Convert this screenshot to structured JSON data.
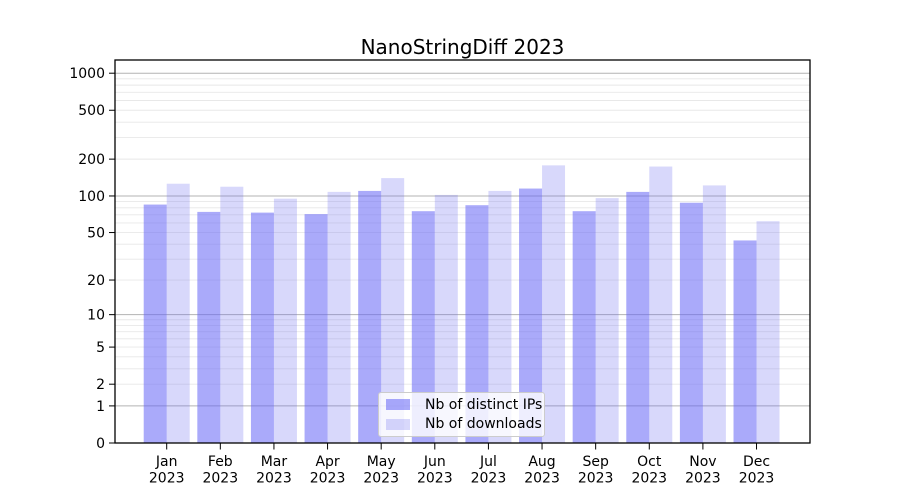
{
  "chart_data": {
    "type": "bar",
    "title": "NanoStringDiff 2023",
    "categories": [
      "Jan 2023",
      "Feb 2023",
      "Mar 2023",
      "Apr 2023",
      "May 2023",
      "Jun 2023",
      "Jul 2023",
      "Aug 2023",
      "Sep 2023",
      "Oct 2023",
      "Nov 2023",
      "Dec 2023"
    ],
    "series": [
      {
        "name": "Nb of distinct IPs",
        "color": "rgba(100,100,245,0.55)",
        "values": [
          85,
          74,
          73,
          71,
          110,
          75,
          84,
          115,
          75,
          108,
          88,
          43
        ]
      },
      {
        "name": "Nb of downloads",
        "color": "rgba(100,100,240,0.25)",
        "values": [
          126,
          119,
          95,
          108,
          140,
          102,
          110,
          178,
          96,
          174,
          122,
          62
        ]
      }
    ],
    "y_ticks": [
      0,
      1,
      2,
      5,
      10,
      20,
      50,
      100,
      200,
      500,
      1000
    ],
    "y_scale": "log1p",
    "ylim": [
      0,
      1280
    ],
    "grid": true,
    "legend_position": "lower-center",
    "colors": {
      "major_grid": "#b3b3b3",
      "minor_grid": "#e8e8e8",
      "axis": "#000000",
      "legend_border": "#cccccc"
    }
  }
}
